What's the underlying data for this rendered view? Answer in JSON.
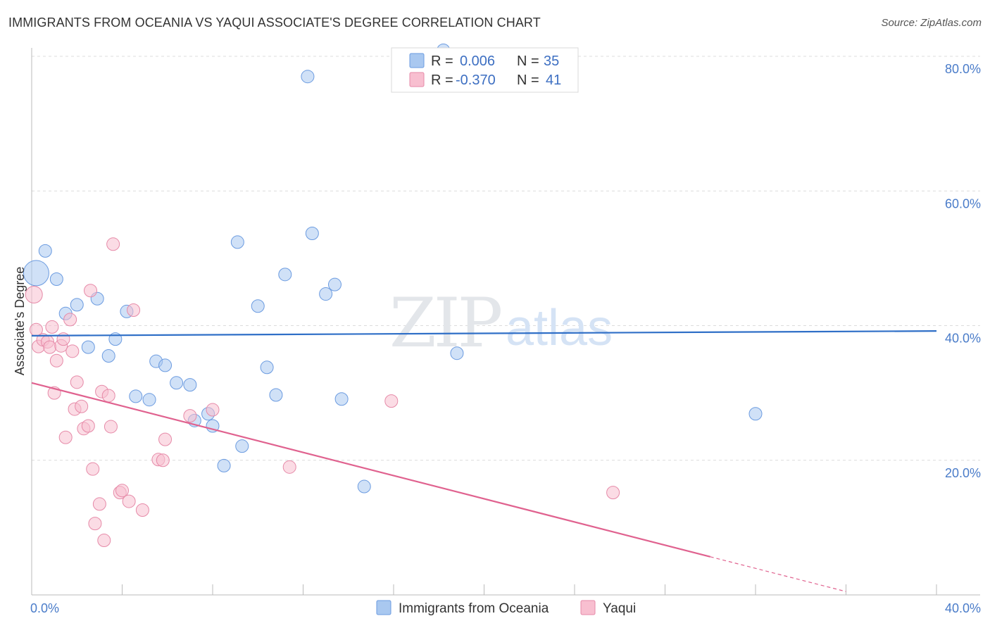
{
  "header": {
    "title": "IMMIGRANTS FROM OCEANIA VS YAQUI ASSOCIATE'S DEGREE CORRELATION CHART",
    "source": "Source: ZipAtlas.com"
  },
  "watermark": {
    "part1": "ZIP",
    "part2": "atlas"
  },
  "legend": {
    "r_label": "R =",
    "n_label": "N =",
    "rows": [
      {
        "r": "0.006",
        "n": "35",
        "color": "#a9c8f0",
        "stroke": "#6b9be0"
      },
      {
        "r": "-0.370",
        "n": "41",
        "color": "#f8bfd0",
        "stroke": "#e68aa8"
      }
    ]
  },
  "chart_data": {
    "type": "scatter",
    "title": "IMMIGRANTS FROM OCEANIA VS YAQUI ASSOCIATE'S DEGREE CORRELATION CHART",
    "xlabel": "",
    "ylabel": "Associate's Degree",
    "xlim": [
      0,
      40
    ],
    "ylim": [
      0,
      80
    ],
    "x_tick_labels": [
      "0.0%",
      "40.0%"
    ],
    "y_ticks": [
      {
        "value": 80,
        "label": "80.0%"
      },
      {
        "value": 60,
        "label": "60.0%"
      },
      {
        "value": 40,
        "label": "40.0%"
      },
      {
        "value": 20,
        "label": "20.0%"
      }
    ],
    "series": [
      {
        "name": "Immigrants from Oceania",
        "color": "#a9c8f0",
        "stroke": "#6b9be0",
        "line_color": "#2f6fc7",
        "trend": {
          "x0": 0,
          "y0": 38.5,
          "x1": 40,
          "y1": 39.2,
          "dash_from": null
        },
        "points": [
          [
            0.2,
            47.8,
            18
          ],
          [
            0.6,
            51.1,
            9
          ],
          [
            1.1,
            46.9,
            9
          ],
          [
            1.5,
            41.8,
            9
          ],
          [
            2.0,
            43.1,
            9
          ],
          [
            2.5,
            36.8,
            9
          ],
          [
            2.9,
            44.0,
            9
          ],
          [
            3.4,
            35.5,
            9
          ],
          [
            3.7,
            38.0,
            9
          ],
          [
            4.2,
            42.1,
            9
          ],
          [
            4.6,
            29.5,
            9
          ],
          [
            5.2,
            29.0,
            9
          ],
          [
            5.5,
            34.7,
            9
          ],
          [
            5.9,
            34.1,
            9
          ],
          [
            6.4,
            31.5,
            9
          ],
          [
            7.0,
            31.2,
            9
          ],
          [
            7.2,
            25.9,
            9
          ],
          [
            7.8,
            26.9,
            9
          ],
          [
            8.0,
            25.1,
            9
          ],
          [
            8.5,
            19.2,
            9
          ],
          [
            9.1,
            52.4,
            9
          ],
          [
            9.3,
            22.1,
            9
          ],
          [
            10.0,
            42.9,
            9
          ],
          [
            10.4,
            33.8,
            9
          ],
          [
            10.8,
            29.7,
            9
          ],
          [
            11.2,
            47.6,
            9
          ],
          [
            12.2,
            77.0,
            9
          ],
          [
            12.4,
            53.7,
            9
          ],
          [
            13.0,
            44.7,
            9
          ],
          [
            13.4,
            46.1,
            9
          ],
          [
            13.7,
            29.1,
            9
          ],
          [
            14.7,
            16.1,
            9
          ],
          [
            18.2,
            80.9,
            9
          ],
          [
            18.8,
            35.9,
            9
          ],
          [
            32.0,
            26.9,
            9
          ]
        ]
      },
      {
        "name": "Yaqui",
        "color": "#f8bfd0",
        "stroke": "#e68aa8",
        "line_color": "#e0628f",
        "trend": {
          "x0": 0,
          "y0": 31.5,
          "x1": 36.0,
          "y1": 0.5,
          "dash_from": 30.0
        },
        "points": [
          [
            0.1,
            44.6,
            12
          ],
          [
            0.2,
            39.4,
            9
          ],
          [
            0.3,
            36.9,
            9
          ],
          [
            0.5,
            37.9,
            9
          ],
          [
            0.7,
            37.6,
            9
          ],
          [
            0.8,
            36.8,
            9
          ],
          [
            0.9,
            39.8,
            9
          ],
          [
            1.0,
            30.0,
            9
          ],
          [
            1.1,
            34.8,
            9
          ],
          [
            1.3,
            37.0,
            9
          ],
          [
            1.4,
            38.0,
            9
          ],
          [
            1.5,
            23.4,
            9
          ],
          [
            1.7,
            40.9,
            9
          ],
          [
            1.8,
            36.2,
            9
          ],
          [
            1.9,
            27.6,
            9
          ],
          [
            2.0,
            31.6,
            9
          ],
          [
            2.2,
            28.0,
            9
          ],
          [
            2.3,
            24.7,
            9
          ],
          [
            2.5,
            25.1,
            9
          ],
          [
            2.6,
            45.2,
            9
          ],
          [
            2.7,
            18.7,
            9
          ],
          [
            2.8,
            10.6,
            9
          ],
          [
            3.0,
            13.5,
            9
          ],
          [
            3.1,
            30.2,
            9
          ],
          [
            3.2,
            8.1,
            9
          ],
          [
            3.4,
            29.6,
            9
          ],
          [
            3.5,
            25.0,
            9
          ],
          [
            3.6,
            52.1,
            9
          ],
          [
            3.9,
            15.2,
            9
          ],
          [
            4.0,
            15.5,
            9
          ],
          [
            4.3,
            13.9,
            9
          ],
          [
            4.5,
            42.3,
            9
          ],
          [
            4.9,
            12.6,
            9
          ],
          [
            5.6,
            20.1,
            9
          ],
          [
            5.8,
            20.0,
            9
          ],
          [
            5.9,
            23.1,
            9
          ],
          [
            7.0,
            26.6,
            9
          ],
          [
            8.0,
            27.5,
            9
          ],
          [
            11.4,
            19.0,
            9
          ],
          [
            15.9,
            28.8,
            9
          ],
          [
            25.7,
            15.2,
            9
          ]
        ]
      }
    ]
  },
  "bottom_legend": [
    {
      "label": "Immigrants from Oceania",
      "color": "#a9c8f0",
      "stroke": "#6b9be0"
    },
    {
      "label": "Yaqui",
      "color": "#f8bfd0",
      "stroke": "#e68aa8"
    }
  ]
}
